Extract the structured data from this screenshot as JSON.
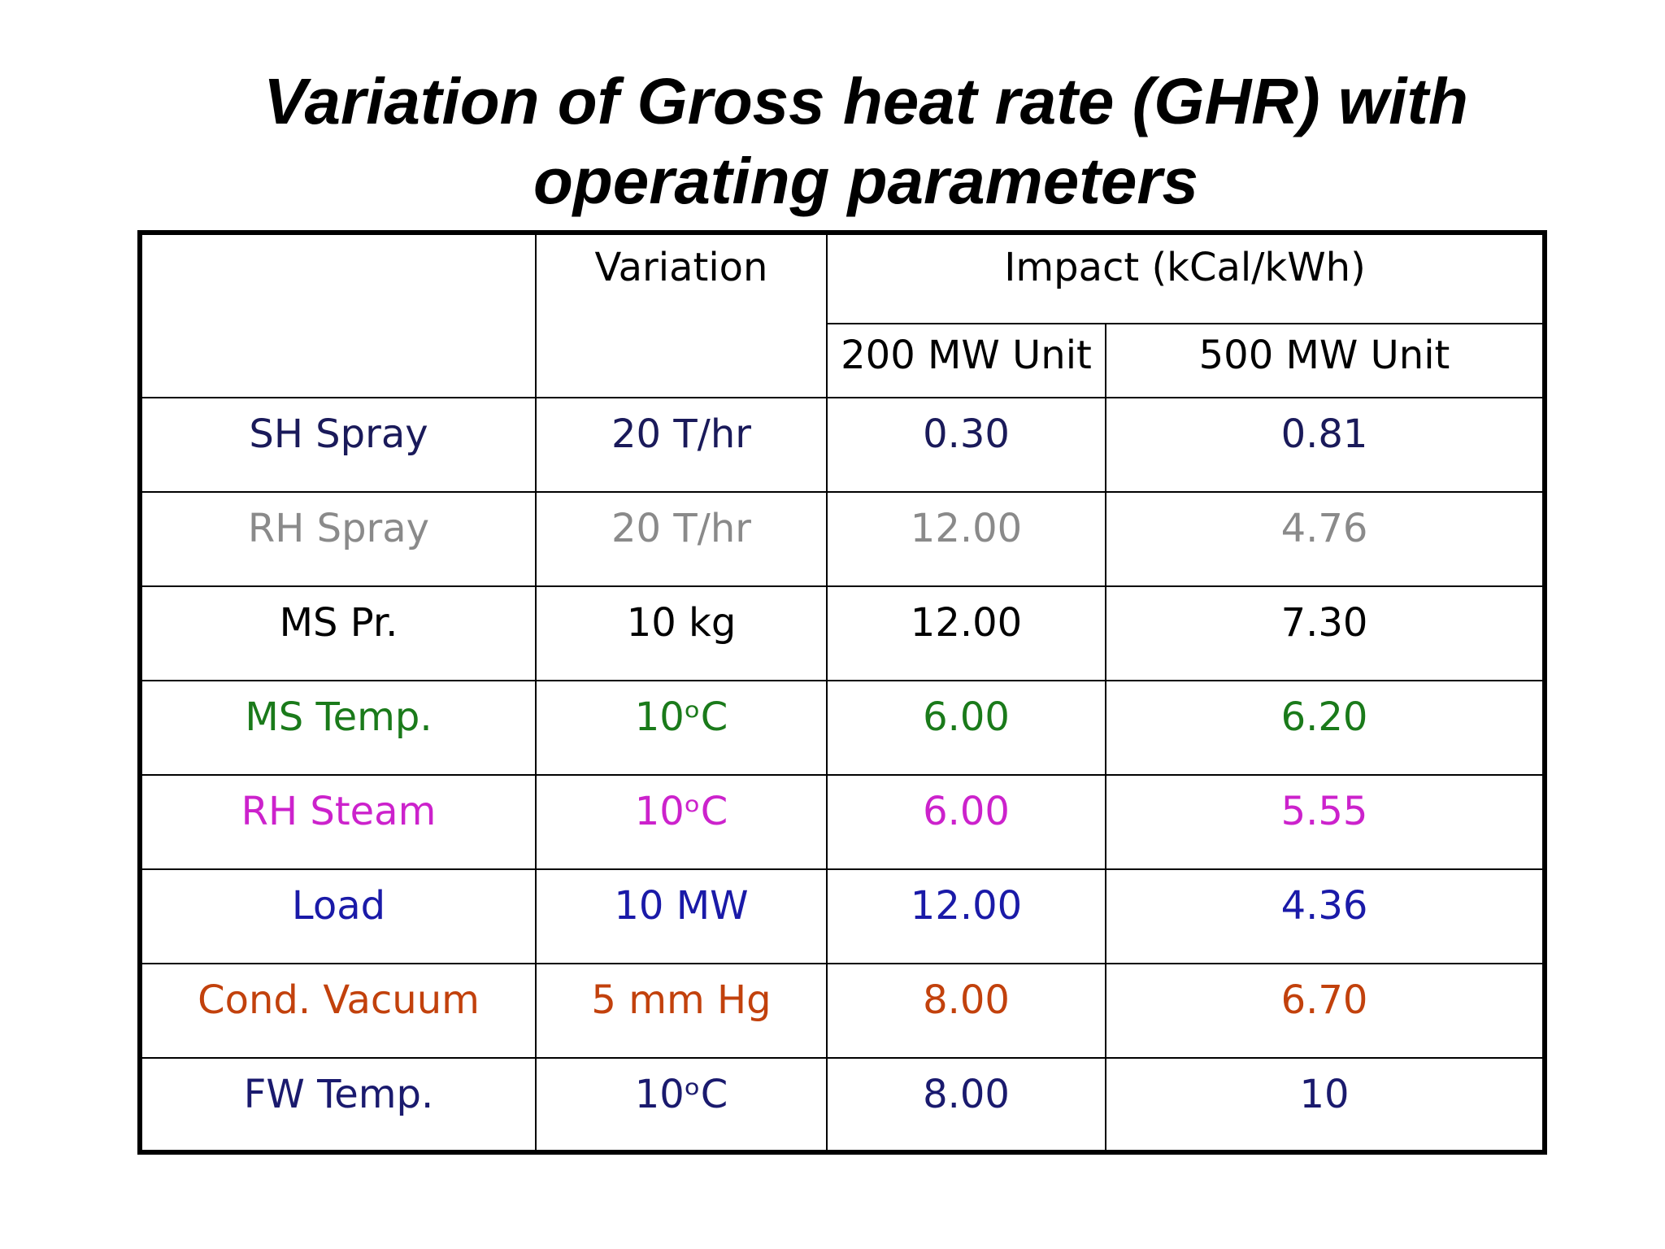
{
  "title": {
    "line1": "Variation of Gross heat rate (GHR) with",
    "line2": "operating parameters"
  },
  "table": {
    "headers": {
      "parameter": "",
      "variation": "Variation",
      "impact": "Impact (kCal/kWh)",
      "unit_200": "200 MW Unit",
      "unit_500": "500 MW Unit"
    },
    "rows": [
      {
        "parameter": "SH Spray",
        "variation": "20 T/hr",
        "unit_200": "0.30",
        "unit_500": "0.81",
        "color": "#1a1a5a"
      },
      {
        "parameter": "RH Spray",
        "variation": "20 T/hr",
        "unit_200": "12.00",
        "unit_500": "4.76",
        "color": "#8a8a8a"
      },
      {
        "parameter": "MS Pr.",
        "variation": "10 kg",
        "unit_200": "12.00",
        "unit_500": "7.30",
        "color": "#000000"
      },
      {
        "parameter": "MS Temp.",
        "variation": "10ᵒC",
        "unit_200": "6.00",
        "unit_500": "6.20",
        "color": "#1a7a1a"
      },
      {
        "parameter": "RH Steam",
        "variation": "10ᵒC",
        "unit_200": "6.00",
        "unit_500": "5.55",
        "color": "#cc22cc"
      },
      {
        "parameter": "Load",
        "variation": "10 MW",
        "unit_200": "12.00",
        "unit_500": "4.36",
        "color": "#1a1aa8"
      },
      {
        "parameter": "Cond. Vacuum",
        "variation": "5 mm Hg",
        "unit_200": "8.00",
        "unit_500": "6.70",
        "color": "#c2410c"
      },
      {
        "parameter": "FW Temp.",
        "variation": "10ᵒC",
        "unit_200": "8.00",
        "unit_500": "10",
        "color": "#1a1a6e"
      }
    ]
  }
}
